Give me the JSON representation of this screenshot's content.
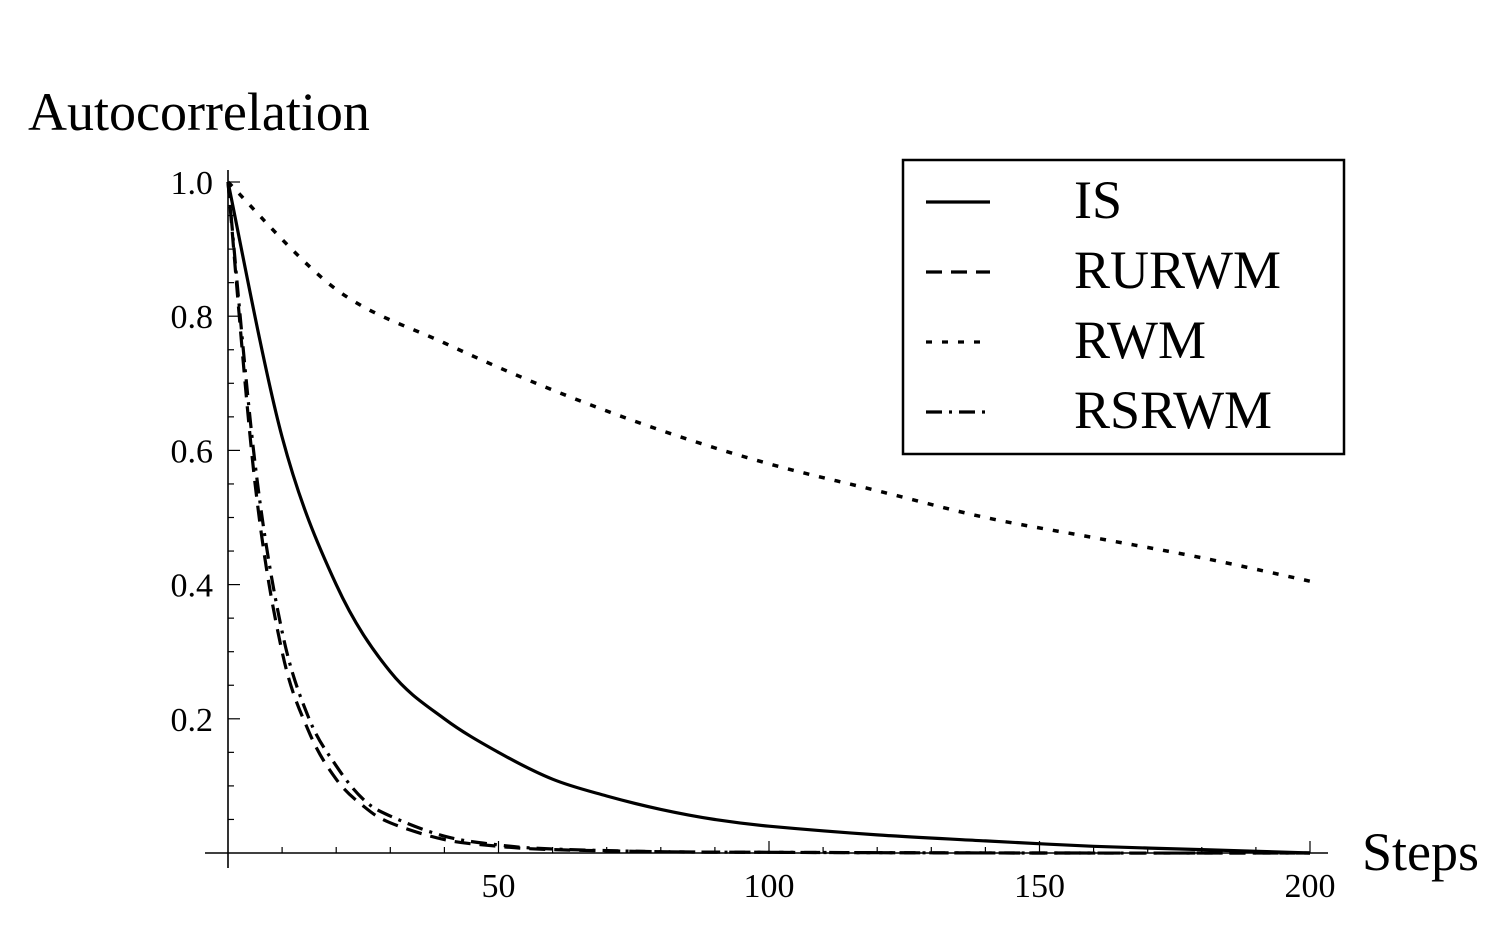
{
  "chart_data": {
    "type": "line",
    "xlabel": "Steps",
    "ylabel": "Autocorrelation",
    "xlim": [
      0,
      200
    ],
    "ylim": [
      0,
      1.0
    ],
    "xticks": [
      50,
      100,
      150,
      200
    ],
    "xtick_labels": [
      "50",
      "100",
      "150",
      "200"
    ],
    "yticks": [
      0.2,
      0.4,
      0.6,
      0.8,
      1.0
    ],
    "ytick_labels": [
      "0.2",
      "0.4",
      "0.6",
      "0.8",
      "1.0"
    ],
    "grid": false,
    "legend": {
      "position": "top-right",
      "boxed": true
    },
    "series": [
      {
        "name": "IS",
        "style": "solid",
        "x": [
          0,
          10,
          20,
          30,
          40,
          50,
          60,
          70,
          80,
          90,
          100,
          120,
          140,
          160,
          180,
          200
        ],
        "y": [
          1.0,
          0.62,
          0.4,
          0.27,
          0.2,
          0.15,
          0.11,
          0.085,
          0.065,
          0.05,
          0.04,
          0.027,
          0.018,
          0.01,
          0.005,
          0.0
        ]
      },
      {
        "name": "RURWM",
        "style": "dashed",
        "x": [
          0,
          5,
          10,
          15,
          20,
          25,
          30,
          40,
          50,
          60,
          80,
          100,
          150,
          200
        ],
        "y": [
          1.0,
          0.55,
          0.3,
          0.18,
          0.11,
          0.07,
          0.045,
          0.02,
          0.01,
          0.005,
          0.002,
          0.001,
          0.0,
          0.0
        ]
      },
      {
        "name": "RWM",
        "style": "dotted",
        "x": [
          0,
          20,
          40,
          60,
          80,
          100,
          120,
          140,
          160,
          180,
          200
        ],
        "y": [
          1.0,
          0.84,
          0.76,
          0.69,
          0.63,
          0.58,
          0.54,
          0.5,
          0.47,
          0.44,
          0.405
        ]
      },
      {
        "name": "RSRWM",
        "style": "dashdot",
        "x": [
          0,
          5,
          10,
          15,
          20,
          25,
          30,
          40,
          50,
          60,
          80,
          100,
          150,
          200
        ],
        "y": [
          1.0,
          0.58,
          0.33,
          0.2,
          0.13,
          0.08,
          0.055,
          0.025,
          0.012,
          0.006,
          0.002,
          0.001,
          0.0,
          0.0
        ]
      }
    ]
  }
}
